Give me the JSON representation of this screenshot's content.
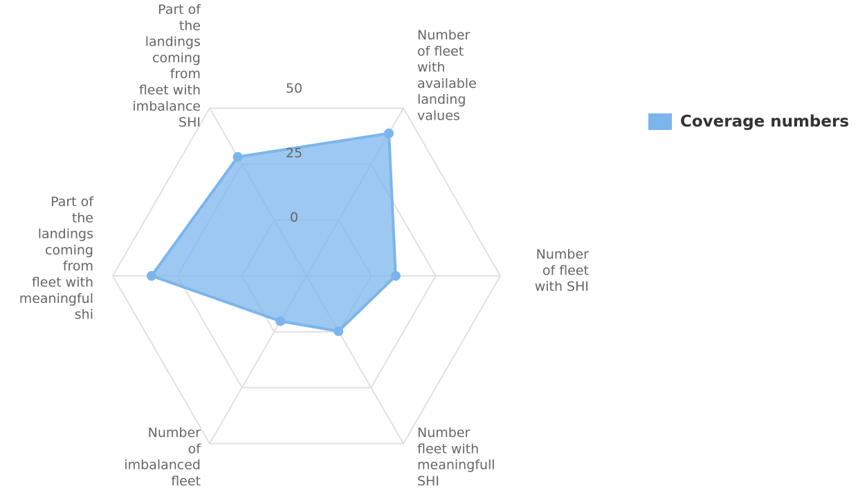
{
  "chart_data": {
    "type": "radar",
    "axes": [
      "Number of fleet with available landing values",
      "Number of fleet with SHI",
      "Number fleet with meaningfull SHI",
      "Number of imbalanced fleet",
      "Part of the landings coming from fleet with meaningful shi",
      "Part of the landings coming from fleet with imbalance SHI"
    ],
    "axis_labels_lines": [
      [
        "Number",
        "of fleet",
        "with",
        "available",
        "landing",
        "values"
      ],
      [
        "Number",
        "of fleet",
        "with SHI"
      ],
      [
        "Number",
        "fleet with",
        "meaningfull",
        "SHI"
      ],
      [
        "Number",
        "of",
        "imbalanced",
        "fleet"
      ],
      [
        "Part of",
        "the",
        "landings",
        "coming",
        "from",
        "fleet with",
        "meaningful",
        "shi"
      ],
      [
        "Part of",
        "the",
        "landings",
        "coming",
        "from",
        "fleet with",
        "imbalance",
        "SHI"
      ]
    ],
    "series": [
      {
        "name": "Coverage numbers",
        "color": "#7cb5ec",
        "values": [
          60,
          21,
          8,
          2,
          55,
          46
        ]
      }
    ],
    "radial_ticks": [
      "0",
      "25",
      "50"
    ],
    "radial_range": [
      -25,
      75
    ],
    "grid": true,
    "legend_position": "right"
  }
}
